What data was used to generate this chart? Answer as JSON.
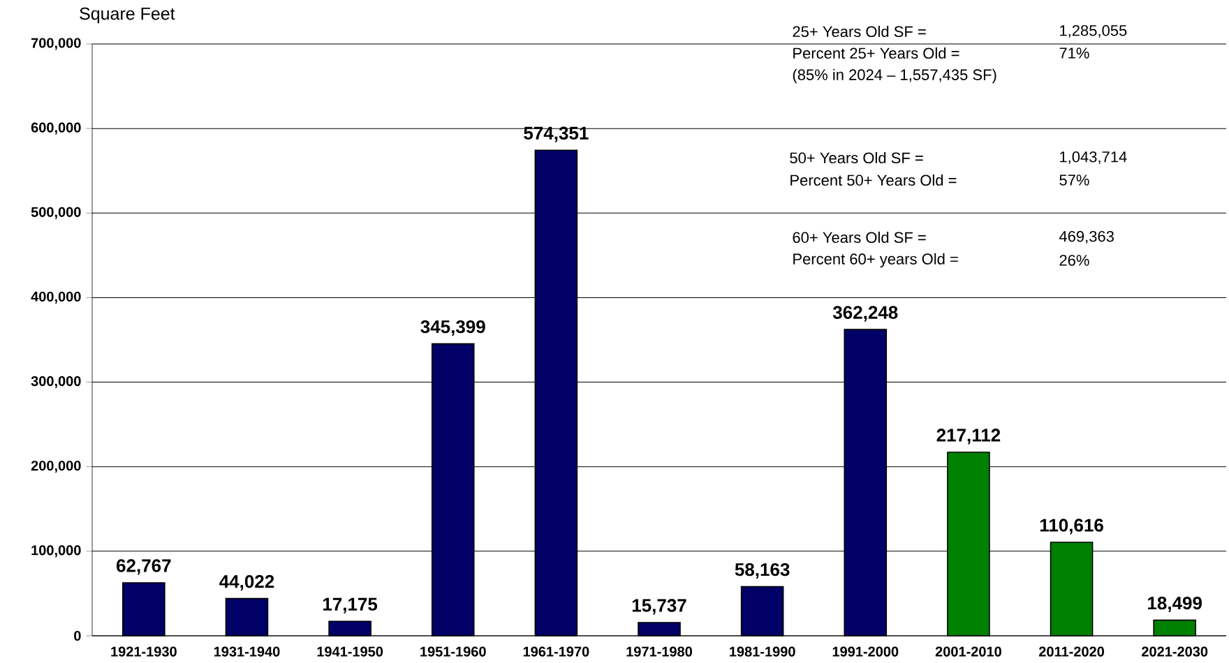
{
  "chart_data": {
    "type": "bar",
    "ylabel": "Square Feet",
    "categories": [
      "1921-1930",
      "1931-1940",
      "1941-1950",
      "1951-1960",
      "1961-1970",
      "1971-1980",
      "1981-1990",
      "1991-2000",
      "2001-2010",
      "2011-2020",
      "2021-2030"
    ],
    "values": [
      62767,
      44022,
      17175,
      345399,
      574351,
      15737,
      58163,
      362248,
      217112,
      110616,
      18499
    ],
    "value_labels": [
      "62,767",
      "44,022",
      "17,175",
      "345,399",
      "574,351",
      "15,737",
      "58,163",
      "362,248",
      "217,112",
      "110,616",
      "18,499"
    ],
    "colors": [
      "#000066",
      "#000066",
      "#000066",
      "#000066",
      "#000066",
      "#000066",
      "#000066",
      "#000066",
      "#008000",
      "#008000",
      "#008000"
    ],
    "ylim": [
      0,
      700000
    ],
    "yticks": [
      {
        "value": 0,
        "label": "0"
      },
      {
        "value": 100000,
        "label": "100,000"
      },
      {
        "value": 200000,
        "label": "200,000"
      },
      {
        "value": 300000,
        "label": "300,000"
      },
      {
        "value": 400000,
        "label": "400,000"
      },
      {
        "value": 500000,
        "label": "500,000"
      },
      {
        "value": 600000,
        "label": "600,000"
      },
      {
        "value": 700000,
        "label": "700,000"
      }
    ],
    "grid": "y",
    "annotations": [
      "25+ Years Old SF =",
      "1,285,055",
      "Percent 25+ Years Old =",
      "71%",
      "(85% in 2024 – 1,557,435 SF)",
      "50+ Years Old SF =",
      "1,043,714",
      "Percent 50+ Years Old =",
      "57%",
      "60+ Years Old SF =",
      "469,363",
      "Percent 60+ years Old =",
      "26%"
    ]
  }
}
